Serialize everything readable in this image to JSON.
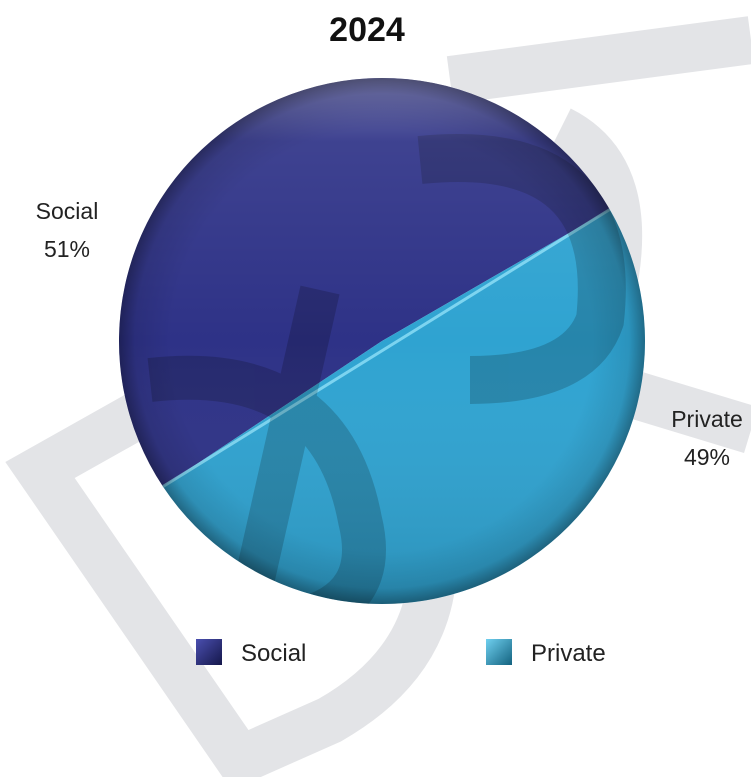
{
  "chart_data": {
    "type": "pie",
    "title": "2024",
    "slices": [
      {
        "name": "Social",
        "value": 51,
        "label": "51%",
        "color": "#2e3287"
      },
      {
        "name": "Private",
        "value": 49,
        "label": "49%",
        "color": "#2fa3d1"
      }
    ],
    "legend": {
      "position": "bottom",
      "items": [
        {
          "name": "Social",
          "color": "#2e3287"
        },
        {
          "name": "Private",
          "color": "#2fa3d1"
        }
      ]
    },
    "watermark": "DR"
  }
}
